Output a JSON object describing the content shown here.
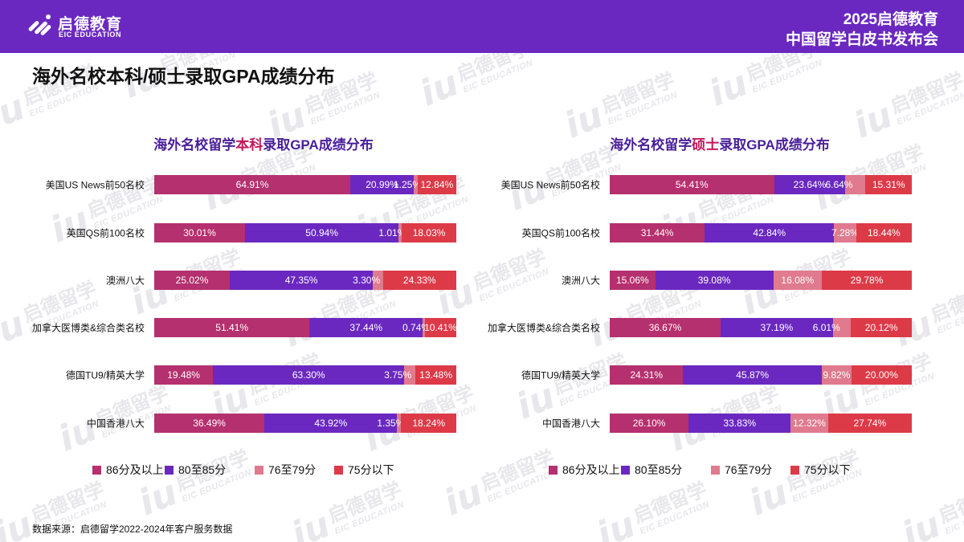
{
  "header": {
    "logo_cn": "启德教育",
    "logo_en": "EIC EDUCATION",
    "event_line1": "2025启德教育",
    "event_line2": "中国留学白皮书发布会"
  },
  "watermark": {
    "cn": "启德留学",
    "en": "EIC EDUCATION",
    "mark": "iu"
  },
  "page_title": "海外名校本科/硕士录取GPA成绩分布",
  "colors": {
    "header_bg": "#6a28c0",
    "s86": "#b5306e",
    "s80": "#6a28c0",
    "s76": "#e07a8e",
    "s75": "#dd3a48"
  },
  "chart_data": [
    {
      "type": "bar",
      "stacked": true,
      "orientation": "horizontal",
      "title_prefix": "海外名校留学",
      "title_highlight": "本科",
      "title_suffix": "录取GPA成绩分布",
      "categories": [
        "美国US News前50名校",
        "英国QS前100名校",
        "澳洲八大",
        "加拿大医博类&综合类名校",
        "德国TU9/精英大学",
        "中国香港八大"
      ],
      "series": [
        {
          "name": "86分及以上",
          "values": [
            64.91,
            30.01,
            25.02,
            51.41,
            19.48,
            36.49
          ],
          "labels": [
            "64.91%",
            "30.01%",
            "25.02%",
            "51.41%",
            "19.48%",
            "36.49%"
          ]
        },
        {
          "name": "80至85分",
          "values": [
            20.99,
            50.94,
            47.35,
            37.44,
            63.3,
            43.92
          ],
          "labels": [
            "20.99%",
            "50.94%",
            "47.35%",
            "37.44%",
            "63.30%",
            "43.92%"
          ]
        },
        {
          "name": "76至79分",
          "values": [
            1.25,
            1.01,
            3.3,
            0.74,
            3.75,
            1.35
          ],
          "labels": [
            "1.25%",
            "1.01%",
            "3.30%",
            "0.74%",
            "3.75%",
            "1.35%"
          ]
        },
        {
          "name": "75分以下",
          "values": [
            12.84,
            18.03,
            24.33,
            10.41,
            13.48,
            18.24
          ],
          "labels": [
            "12.84%",
            "18.03%",
            "24.33%",
            "10.41%",
            "13.48%",
            "18.24%"
          ]
        }
      ],
      "xlim": [
        0,
        100
      ],
      "legend": "bottom"
    },
    {
      "type": "bar",
      "stacked": true,
      "orientation": "horizontal",
      "title_prefix": "海外名校留学",
      "title_highlight": "硕士",
      "title_suffix": "录取GPA成绩分布",
      "categories": [
        "美国US News前50名校",
        "英国QS前100名校",
        "澳洲八大",
        "加拿大医博类&综合类名校",
        "德国TU9/精英大学",
        "中国香港八大"
      ],
      "series": [
        {
          "name": "86分及以上",
          "values": [
            54.41,
            31.44,
            15.06,
            36.67,
            24.31,
            26.1
          ],
          "labels": [
            "54.41%",
            "31.44%",
            "15.06%",
            "36.67%",
            "24.31%",
            "26.10%"
          ]
        },
        {
          "name": "80至85分",
          "values": [
            23.64,
            42.84,
            39.08,
            37.19,
            45.87,
            33.83
          ],
          "labels": [
            "23.64%",
            "42.84%",
            "39.08%",
            "37.19%",
            "45.87%",
            "33.83%"
          ]
        },
        {
          "name": "76至79分",
          "values": [
            6.64,
            7.28,
            16.08,
            6.01,
            9.82,
            12.32
          ],
          "labels": [
            "6.64%",
            "7.28%",
            "16.08%",
            "6.01%",
            "9.82%",
            "12.32%"
          ]
        },
        {
          "name": "75分以下",
          "values": [
            15.31,
            18.44,
            29.78,
            20.12,
            20.0,
            27.74
          ],
          "labels": [
            "15.31%",
            "18.44%",
            "29.78%",
            "20.12%",
            "20.00%",
            "27.74%"
          ]
        }
      ],
      "xlim": [
        0,
        100
      ],
      "legend": "bottom"
    }
  ],
  "source_note": "数据来源：启德留学2022-2024年客户服务数据"
}
